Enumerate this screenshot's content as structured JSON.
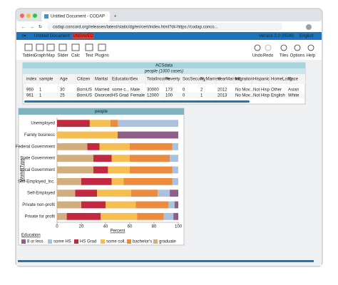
{
  "browser": {
    "tab_title": "Untitled Document - CODAP",
    "url": "codap.concord.org/releases/latest/static/dg/en/cert/index.html?di=https://codap.conco..."
  },
  "codap": {
    "document_name": "Untitled Document",
    "unsaved_badge": "UNSAVED",
    "version": "Version 2.0 (0539)",
    "language": "English"
  },
  "toolbar": {
    "left": [
      "Tables",
      "Graph",
      "Map",
      "Slider",
      "Calc",
      "Text",
      "Plugins"
    ],
    "right": [
      "Undo",
      "Redo",
      "Tiles",
      "Options",
      "Help"
    ]
  },
  "table": {
    "title": "ACSdata",
    "subtitle": "people (1000 cases)",
    "columns": [
      "index",
      "sample",
      "Age",
      "Citizen",
      "Marital",
      "Education",
      "Sex",
      "TotalIncome",
      "Poverty",
      "SocSecurity",
      "N_Married",
      "YearMarried",
      "Migration",
      "Hispanic",
      "HomeLang",
      "Race"
    ],
    "rows": [
      [
        960,
        1,
        30,
        "BornUS",
        "Married",
        "some c...",
        "Male",
        30000,
        173,
        0,
        2,
        2012,
        "No Mov...",
        "Not Hisp",
        "Other",
        "Asian"
      ],
      [
        961,
        1,
        25,
        "BornUS",
        "Divorced",
        "HS Grad",
        "Female",
        12000,
        100,
        0,
        1,
        2013,
        "No Mov...",
        "Not Hisp",
        "English",
        "White"
      ]
    ]
  },
  "chart_data": {
    "type": "stacked-bar",
    "title": "people",
    "x_label": "Percent",
    "y_label": "WorkerType",
    "legend_title": "Education",
    "categories": [
      "Unemployed",
      "Family business",
      "Federal Government",
      "State Government",
      "Local Government",
      "Self-Employed_Inc.",
      "Self-Employed",
      "Private non-profit",
      "Private for profit"
    ],
    "xlim": [
      0,
      100
    ],
    "xticks": [
      0,
      20,
      40,
      60,
      80,
      100
    ],
    "series": [
      {
        "name": "graduate",
        "color": "#d2ad7d",
        "values": [
          0,
          0,
          25,
          30,
          30,
          20,
          15,
          20,
          8
        ]
      },
      {
        "name": "HS Grad",
        "color": "#c2283f",
        "values": [
          27,
          0,
          10,
          15,
          12,
          25,
          18,
          20,
          28
        ]
      },
      {
        "name": "some coll...",
        "color": "#f6be4e",
        "values": [
          17,
          50,
          25,
          15,
          18,
          10,
          28,
          25,
          30
        ]
      },
      {
        "name": "bachelor's",
        "color": "#ec8a3e",
        "values": [
          6,
          0,
          35,
          33,
          35,
          40,
          22,
          27,
          22
        ]
      },
      {
        "name": "some HS",
        "color": "#aac2de",
        "values": [
          50,
          0,
          5,
          7,
          5,
          5,
          10,
          5,
          8
        ]
      },
      {
        "name": "8 or less",
        "color": "#8f5f87",
        "values": [
          0,
          50,
          0,
          0,
          0,
          0,
          7,
          3,
          4
        ]
      }
    ]
  }
}
